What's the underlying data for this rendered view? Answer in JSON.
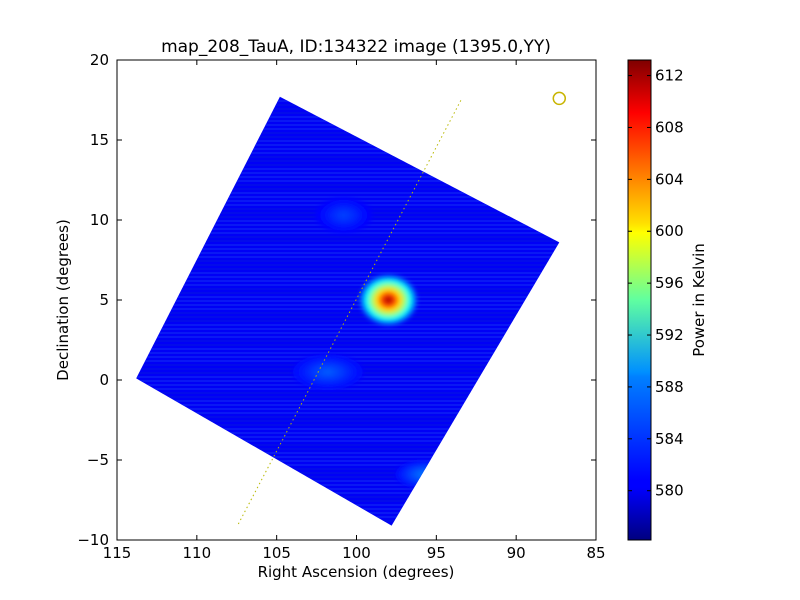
{
  "chart_data": {
    "type": "heatmap",
    "title": "map_208_TauA, ID:134322 image (1395.0,YY)",
    "xlabel": "Right Ascension (degrees)",
    "ylabel": "Declination (degrees)",
    "xlim": [
      115,
      85
    ],
    "ylim": [
      -10,
      20
    ],
    "x_ticks": [
      115,
      110,
      105,
      100,
      95,
      90,
      85
    ],
    "y_ticks": [
      -10,
      -5,
      0,
      5,
      10,
      15,
      20
    ],
    "x_tick_labels": [
      "115",
      "110",
      "105",
      "100",
      "95",
      "90",
      "85"
    ],
    "y_tick_labels": [
      "−10",
      "−5",
      "0",
      "5",
      "10",
      "15",
      "20"
    ],
    "map_corners": [
      {
        "ra": 104.8,
        "dec": 17.7
      },
      {
        "ra": 87.3,
        "dec": 8.6
      },
      {
        "ra": 97.8,
        "dec": -9.1
      },
      {
        "ra": 113.8,
        "dec": 0.1
      }
    ],
    "background_level": 580.5,
    "sources": [
      {
        "ra": 98.0,
        "dec": 5.0,
        "peak": 611,
        "ra_sigma": 0.8,
        "dec_sigma": 0.7
      },
      {
        "ra": 95.8,
        "dec": -5.9,
        "peak": 585,
        "ra_sigma": 0.8,
        "dec_sigma": 0.4
      },
      {
        "ra": 101.8,
        "dec": 0.5,
        "peak": 584,
        "ra_sigma": 1.0,
        "dec_sigma": 0.5
      },
      {
        "ra": 100.8,
        "dec": 10.3,
        "peak": 583,
        "ra_sigma": 0.8,
        "dec_sigma": 0.5
      }
    ],
    "scan_line": {
      "start": {
        "ra": 107.4,
        "dec": -9.0
      },
      "end": {
        "ra": 93.4,
        "dec": 17.6
      },
      "color": "#b8b800",
      "style": "dotted"
    },
    "marker": {
      "ra": 87.3,
      "dec": 17.6,
      "shape": "circle",
      "color": "#c8b400"
    },
    "colorbar": {
      "label": "Power in Kelvin",
      "vmin": 576.2,
      "vmax": 613.2,
      "ticks": [
        580,
        584,
        588,
        592,
        596,
        600,
        604,
        608,
        612
      ],
      "tick_labels": [
        "580",
        "584",
        "588",
        "592",
        "596",
        "600",
        "604",
        "608",
        "612"
      ],
      "colormap": "jet"
    }
  }
}
